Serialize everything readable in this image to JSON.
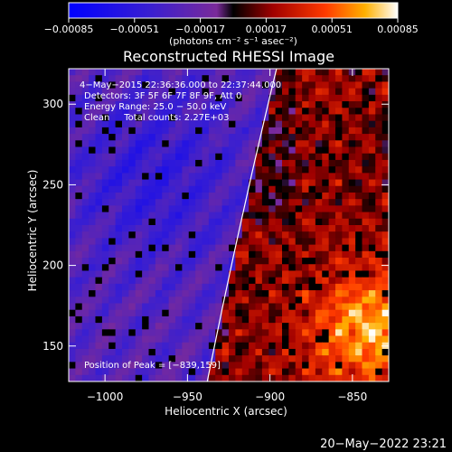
{
  "chart_data": {
    "type": "heatmap",
    "title": "Reconstructed RHESSI Image",
    "xlabel": "Heliocentric X (arcsec)",
    "ylabel": "Heliocentric Y (arcsec)",
    "xlim": [
      -1022,
      -828
    ],
    "ylim": [
      128,
      322
    ],
    "x_ticks": [
      -1000,
      -950,
      -900,
      -850
    ],
    "x_tick_labels": [
      "−1000",
      "−950",
      "−900",
      "−850"
    ],
    "y_ticks": [
      150,
      200,
      250,
      300
    ],
    "y_tick_labels": [
      "150",
      "200",
      "250",
      "300"
    ],
    "colorbar": {
      "range": [
        -0.00085,
        0.00085
      ],
      "ticks": [
        -0.00085,
        -0.00051,
        -0.00017,
        0.00017,
        0.00051,
        0.00085
      ],
      "tick_labels": [
        "−0.00085",
        "−0.00051",
        "−0.00017",
        "0.00017",
        "0.00051",
        "0.00085"
      ],
      "units_label": "(photons cm⁻² s⁻¹ asec⁻²)",
      "colormap": "blue-purple-red-yellow-white"
    },
    "annotations": [
      "4−May−2015 22:36:36.000 to 22:37:44.000",
      "Detectors: 3F 5F 6F 7F 8F 9F, Att 0",
      "Energy Range: 25.0 − 50.0 keV",
      "Clean     Total counts: 2.27E+03"
    ],
    "peak_label": "Position of Peak = [−839,159]",
    "peak_position": [
      -839,
      159
    ],
    "limb_curve_points": [
      [
        -938,
        128
      ],
      [
        -918,
        225
      ],
      [
        -896,
        322
      ]
    ],
    "grid": false,
    "image_grid_size": [
      48,
      48
    ]
  },
  "footer": {
    "timestamp": "20−May−2022 23:21"
  },
  "colors": {
    "background": "#000000",
    "text": "#ffffff",
    "axes": "#ffffff"
  }
}
